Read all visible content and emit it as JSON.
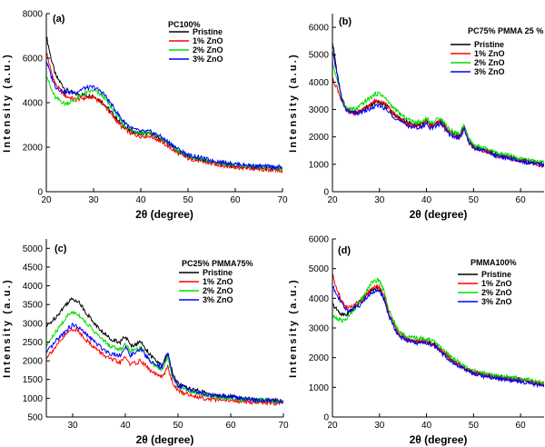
{
  "chart_data": [
    {
      "type": "line",
      "panel_label": "(a)",
      "legend_title": "PC100%",
      "xlabel": "2θ (degree)",
      "ylabel": "Intensity (a.u.)",
      "xlim": [
        20,
        70
      ],
      "ylim": [
        0,
        8000
      ],
      "xticks": [
        20,
        30,
        40,
        50,
        60,
        70
      ],
      "yticks": [
        0,
        2000,
        4000,
        6000,
        8000
      ],
      "series": [
        {
          "name": "Pristine",
          "color": "#000000",
          "x": [
            20,
            21,
            22,
            24,
            26,
            28,
            30,
            32,
            34,
            36,
            38,
            40,
            42,
            44,
            46,
            48,
            50,
            55,
            60,
            65,
            70
          ],
          "y": [
            7000,
            6000,
            5200,
            4600,
            4400,
            4350,
            4300,
            4000,
            3500,
            3000,
            2700,
            2600,
            2600,
            2400,
            2100,
            1800,
            1550,
            1300,
            1150,
            1050,
            1000
          ]
        },
        {
          "name": "1% ZnO",
          "color": "#ff0000",
          "x": [
            20,
            21,
            22,
            24,
            26,
            28,
            30,
            32,
            34,
            36,
            38,
            40,
            42,
            44,
            46,
            48,
            50,
            55,
            60,
            65,
            70
          ],
          "y": [
            6300,
            5400,
            4800,
            4300,
            4150,
            4200,
            4250,
            3950,
            3400,
            2900,
            2600,
            2500,
            2500,
            2300,
            2000,
            1700,
            1500,
            1250,
            1100,
            1000,
            950
          ]
        },
        {
          "name": "2% ZnO",
          "color": "#00dd00",
          "x": [
            20,
            21,
            22,
            24,
            26,
            28,
            30,
            32,
            34,
            36,
            38,
            40,
            42,
            44,
            46,
            48,
            50,
            55,
            60,
            65,
            70
          ],
          "y": [
            5300,
            4600,
            4200,
            3950,
            4100,
            4400,
            4550,
            4300,
            3700,
            3100,
            2750,
            2650,
            2650,
            2450,
            2150,
            1850,
            1600,
            1350,
            1200,
            1100,
            1050
          ]
        },
        {
          "name": "3% ZnO",
          "color": "#0000ff",
          "x": [
            20,
            21,
            22,
            24,
            26,
            28,
            30,
            32,
            34,
            36,
            38,
            40,
            42,
            44,
            46,
            48,
            50,
            55,
            60,
            65,
            70
          ],
          "y": [
            5900,
            5200,
            4700,
            4450,
            4450,
            4650,
            4700,
            4450,
            3850,
            3250,
            2850,
            2700,
            2700,
            2500,
            2200,
            1900,
            1650,
            1400,
            1250,
            1150,
            1100
          ]
        }
      ]
    },
    {
      "type": "line",
      "panel_label": "(b)",
      "legend_title": "PC75% PMMA 25 %",
      "xlabel": "2θ (degree)",
      "ylabel": "Intensity (a.u.)",
      "xlim": [
        20,
        65
      ],
      "ylim": [
        0,
        6500
      ],
      "xticks": [
        20,
        30,
        40,
        50,
        60
      ],
      "yticks": [
        0,
        1000,
        2000,
        3000,
        4000,
        5000,
        6000
      ],
      "series": [
        {
          "name": "Pristine",
          "color": "#000000",
          "x": [
            20,
            21,
            22,
            23,
            25,
            27,
            29,
            30,
            31,
            33,
            35,
            37,
            39,
            40,
            41,
            43,
            45,
            47,
            48,
            49,
            50,
            52,
            55,
            58,
            60,
            62,
            65
          ],
          "y": [
            5500,
            4300,
            3400,
            3000,
            2900,
            3050,
            3250,
            3300,
            3200,
            2850,
            2600,
            2450,
            2450,
            2600,
            2400,
            2600,
            2150,
            2050,
            2400,
            1850,
            1650,
            1550,
            1350,
            1250,
            1150,
            1100,
            1000
          ]
        },
        {
          "name": "1% ZnO",
          "color": "#ff0000",
          "x": [
            20,
            21,
            22,
            23,
            25,
            27,
            29,
            30,
            31,
            33,
            35,
            37,
            39,
            40,
            41,
            43,
            45,
            47,
            48,
            49,
            50,
            52,
            55,
            58,
            60,
            62,
            65
          ],
          "y": [
            4100,
            3800,
            3300,
            2950,
            2850,
            3050,
            3300,
            3350,
            3250,
            2850,
            2550,
            2400,
            2400,
            2550,
            2350,
            2550,
            2100,
            2000,
            2350,
            1800,
            1600,
            1500,
            1300,
            1200,
            1100,
            1050,
            950
          ]
        },
        {
          "name": "2% ZnO",
          "color": "#00dd00",
          "x": [
            20,
            21,
            22,
            23,
            25,
            27,
            29,
            30,
            31,
            33,
            35,
            37,
            39,
            40,
            41,
            43,
            45,
            47,
            48,
            49,
            50,
            52,
            55,
            58,
            60,
            62,
            65
          ],
          "y": [
            4700,
            4100,
            3400,
            3050,
            3000,
            3300,
            3550,
            3600,
            3450,
            3050,
            2750,
            2550,
            2550,
            2700,
            2500,
            2700,
            2250,
            2100,
            2450,
            1900,
            1700,
            1600,
            1400,
            1300,
            1200,
            1150,
            1050
          ]
        },
        {
          "name": "3% ZnO",
          "color": "#0000ff",
          "x": [
            20,
            21,
            22,
            23,
            25,
            27,
            29,
            30,
            31,
            33,
            35,
            37,
            39,
            40,
            41,
            43,
            45,
            47,
            48,
            49,
            50,
            52,
            55,
            58,
            60,
            62,
            65
          ],
          "y": [
            5100,
            4300,
            3300,
            2950,
            2850,
            2950,
            3100,
            3150,
            3050,
            2750,
            2500,
            2350,
            2350,
            2500,
            2300,
            2500,
            2050,
            1950,
            2300,
            1800,
            1600,
            1500,
            1300,
            1200,
            1100,
            1050,
            950
          ]
        }
      ]
    },
    {
      "type": "line",
      "panel_label": "(c)",
      "legend_title": "PC25% PMMA75%",
      "xlabel": "2θ (degree)",
      "ylabel": "Intensity (a.u.)",
      "xlim": [
        25,
        70
      ],
      "ylim": [
        500,
        5250
      ],
      "xticks": [
        30,
        40,
        50,
        60,
        70
      ],
      "yticks": [
        500,
        1000,
        1500,
        2000,
        2500,
        3000,
        3500,
        4000,
        4500,
        5000
      ],
      "series": [
        {
          "name": "Pristine",
          "color": "#000000",
          "x": [
            25,
            27,
            29,
            30,
            31,
            33,
            35,
            37,
            39,
            40,
            41,
            43,
            45,
            47,
            48,
            49,
            50,
            52,
            55,
            58,
            60,
            62,
            65,
            68,
            70
          ],
          "y": [
            2900,
            3200,
            3550,
            3650,
            3600,
            3200,
            2850,
            2600,
            2500,
            2650,
            2400,
            2500,
            2100,
            1850,
            2200,
            1650,
            1400,
            1250,
            1150,
            1050,
            1050,
            1000,
            950,
            950,
            900
          ]
        },
        {
          "name": "1% ZnO",
          "color": "#ff0000",
          "x": [
            25,
            27,
            29,
            30,
            31,
            33,
            35,
            37,
            39,
            40,
            41,
            43,
            45,
            47,
            48,
            49,
            50,
            52,
            55,
            58,
            60,
            62,
            65,
            68,
            70
          ],
          "y": [
            2100,
            2400,
            2750,
            2850,
            2800,
            2500,
            2250,
            2050,
            1950,
            2100,
            1900,
            2000,
            1700,
            1550,
            1850,
            1400,
            1200,
            1100,
            1000,
            950,
            950,
            900,
            900,
            880,
            850
          ]
        },
        {
          "name": "2% ZnO",
          "color": "#00dd00",
          "x": [
            25,
            27,
            29,
            30,
            31,
            33,
            35,
            37,
            39,
            40,
            41,
            43,
            45,
            47,
            48,
            49,
            50,
            52,
            55,
            58,
            60,
            62,
            65,
            68,
            70
          ],
          "y": [
            2400,
            2800,
            3200,
            3300,
            3250,
            2950,
            2650,
            2400,
            2300,
            2450,
            2250,
            2350,
            1950,
            1750,
            2100,
            1550,
            1300,
            1200,
            1100,
            1000,
            1000,
            950,
            950,
            920,
            900
          ]
        },
        {
          "name": "3% ZnO",
          "color": "#0000ff",
          "x": [
            25,
            27,
            29,
            30,
            31,
            33,
            35,
            37,
            39,
            40,
            41,
            43,
            45,
            47,
            48,
            49,
            50,
            52,
            55,
            58,
            60,
            62,
            65,
            68,
            70
          ],
          "y": [
            2200,
            2550,
            2850,
            2950,
            2900,
            2650,
            2400,
            2200,
            2150,
            2350,
            2150,
            2300,
            1950,
            1800,
            2250,
            1600,
            1350,
            1250,
            1100,
            1050,
            1050,
            1000,
            950,
            950,
            920
          ]
        }
      ]
    },
    {
      "type": "line",
      "panel_label": "(d)",
      "legend_title": "PMMA100%",
      "xlabel": "2θ (degree)",
      "ylabel": "Intensity (a.u.)",
      "xlim": [
        20,
        65
      ],
      "ylim": [
        0,
        6000
      ],
      "xticks": [
        20,
        30,
        40,
        50,
        60
      ],
      "yticks": [
        0,
        1000,
        2000,
        3000,
        4000,
        5000,
        6000
      ],
      "series": [
        {
          "name": "Pristine",
          "color": "#000000",
          "x": [
            20,
            21,
            22,
            23,
            24,
            26,
            28,
            29,
            30,
            31,
            32,
            34,
            36,
            38,
            40,
            42,
            44,
            46,
            48,
            50,
            55,
            60,
            65
          ],
          "y": [
            3800,
            3600,
            3450,
            3450,
            3600,
            3900,
            4250,
            4350,
            4300,
            4000,
            3450,
            2800,
            2600,
            2550,
            2550,
            2400,
            2100,
            1850,
            1650,
            1500,
            1350,
            1250,
            1100
          ]
        },
        {
          "name": "1% ZnO",
          "color": "#ff0000",
          "x": [
            20,
            21,
            22,
            23,
            24,
            26,
            28,
            29,
            30,
            31,
            32,
            34,
            36,
            38,
            40,
            42,
            44,
            46,
            48,
            50,
            55,
            60,
            65
          ],
          "y": [
            4800,
            4300,
            3900,
            3700,
            3700,
            3900,
            4250,
            4400,
            4400,
            4100,
            3500,
            2850,
            2600,
            2550,
            2550,
            2400,
            2100,
            1850,
            1650,
            1500,
            1350,
            1250,
            1100
          ]
        },
        {
          "name": "2% ZnO",
          "color": "#00dd00",
          "x": [
            20,
            21,
            22,
            23,
            24,
            26,
            28,
            29,
            30,
            31,
            32,
            34,
            36,
            38,
            40,
            42,
            44,
            46,
            48,
            50,
            55,
            60,
            65
          ],
          "y": [
            3400,
            3300,
            3250,
            3300,
            3500,
            3950,
            4450,
            4600,
            4600,
            4250,
            3600,
            2900,
            2700,
            2650,
            2650,
            2500,
            2200,
            1950,
            1700,
            1550,
            1400,
            1300,
            1150
          ]
        },
        {
          "name": "3% ZnO",
          "color": "#0000ff",
          "x": [
            20,
            21,
            22,
            23,
            24,
            26,
            28,
            29,
            30,
            31,
            32,
            34,
            36,
            38,
            40,
            42,
            44,
            46,
            48,
            50,
            55,
            60,
            65
          ],
          "y": [
            4400,
            4150,
            3800,
            3600,
            3600,
            3800,
            4150,
            4250,
            4250,
            3950,
            3400,
            2750,
            2550,
            2500,
            2500,
            2350,
            2050,
            1800,
            1600,
            1450,
            1300,
            1200,
            1050
          ]
        }
      ]
    }
  ]
}
